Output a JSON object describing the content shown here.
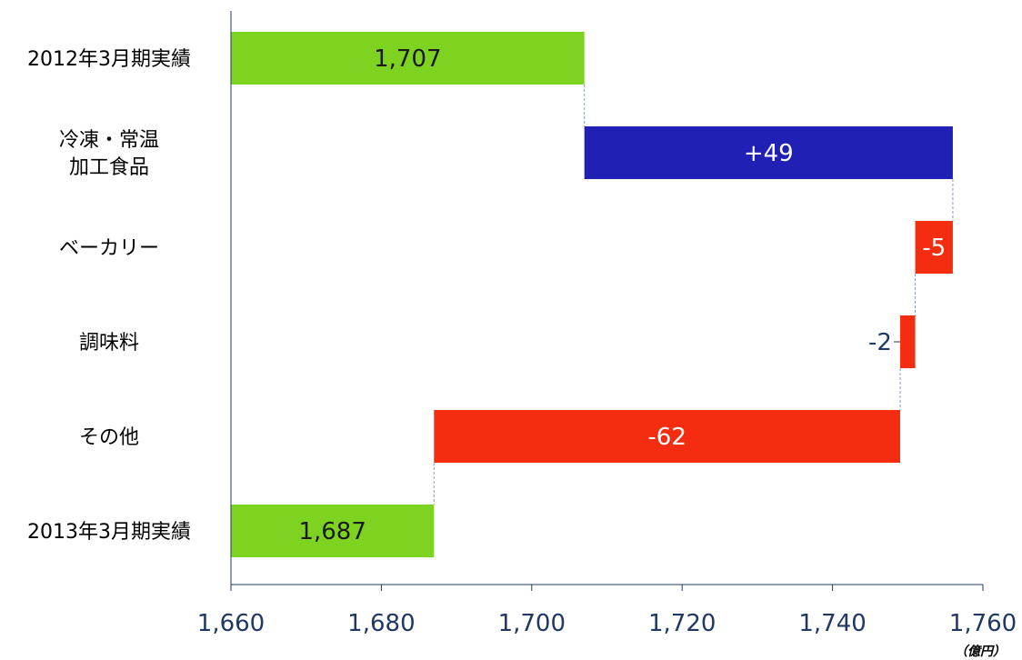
{
  "chart_data": {
    "type": "bar",
    "subtype": "waterfall",
    "orientation": "horizontal",
    "title": "",
    "xlabel": "",
    "ylabel": "",
    "unit": "（億円）",
    "xlim": [
      1660,
      1760
    ],
    "xticks": [
      1660,
      1680,
      1700,
      1720,
      1740,
      1760
    ],
    "xtick_labels": [
      "1,660",
      "1,680",
      "1,700",
      "1,720",
      "1,740",
      "1,760"
    ],
    "grid": false,
    "legend": "none",
    "colors": {
      "total": "#7ed321",
      "increase": "#2020b4",
      "decrease": "#f52d10",
      "label_dark": "#1f3864",
      "label_light": "#ffffff"
    },
    "bars": [
      {
        "category": "2012年3月期実績",
        "kind": "total",
        "start": 1660,
        "end": 1707,
        "label": "1,707"
      },
      {
        "category": "冷凍・常温\n加工食品",
        "kind": "increase",
        "start": 1707,
        "end": 1756,
        "label": "+49"
      },
      {
        "category": "ベーカリー",
        "kind": "decrease",
        "start": 1756,
        "end": 1751,
        "label": "-5"
      },
      {
        "category": "調味料",
        "kind": "decrease",
        "start": 1751,
        "end": 1749,
        "label": "-2",
        "label_outside": true
      },
      {
        "category": "その他",
        "kind": "decrease",
        "start": 1749,
        "end": 1687,
        "label": "-62"
      },
      {
        "category": "2013年3月期実績",
        "kind": "total",
        "start": 1660,
        "end": 1687,
        "label": "1,687"
      }
    ]
  }
}
